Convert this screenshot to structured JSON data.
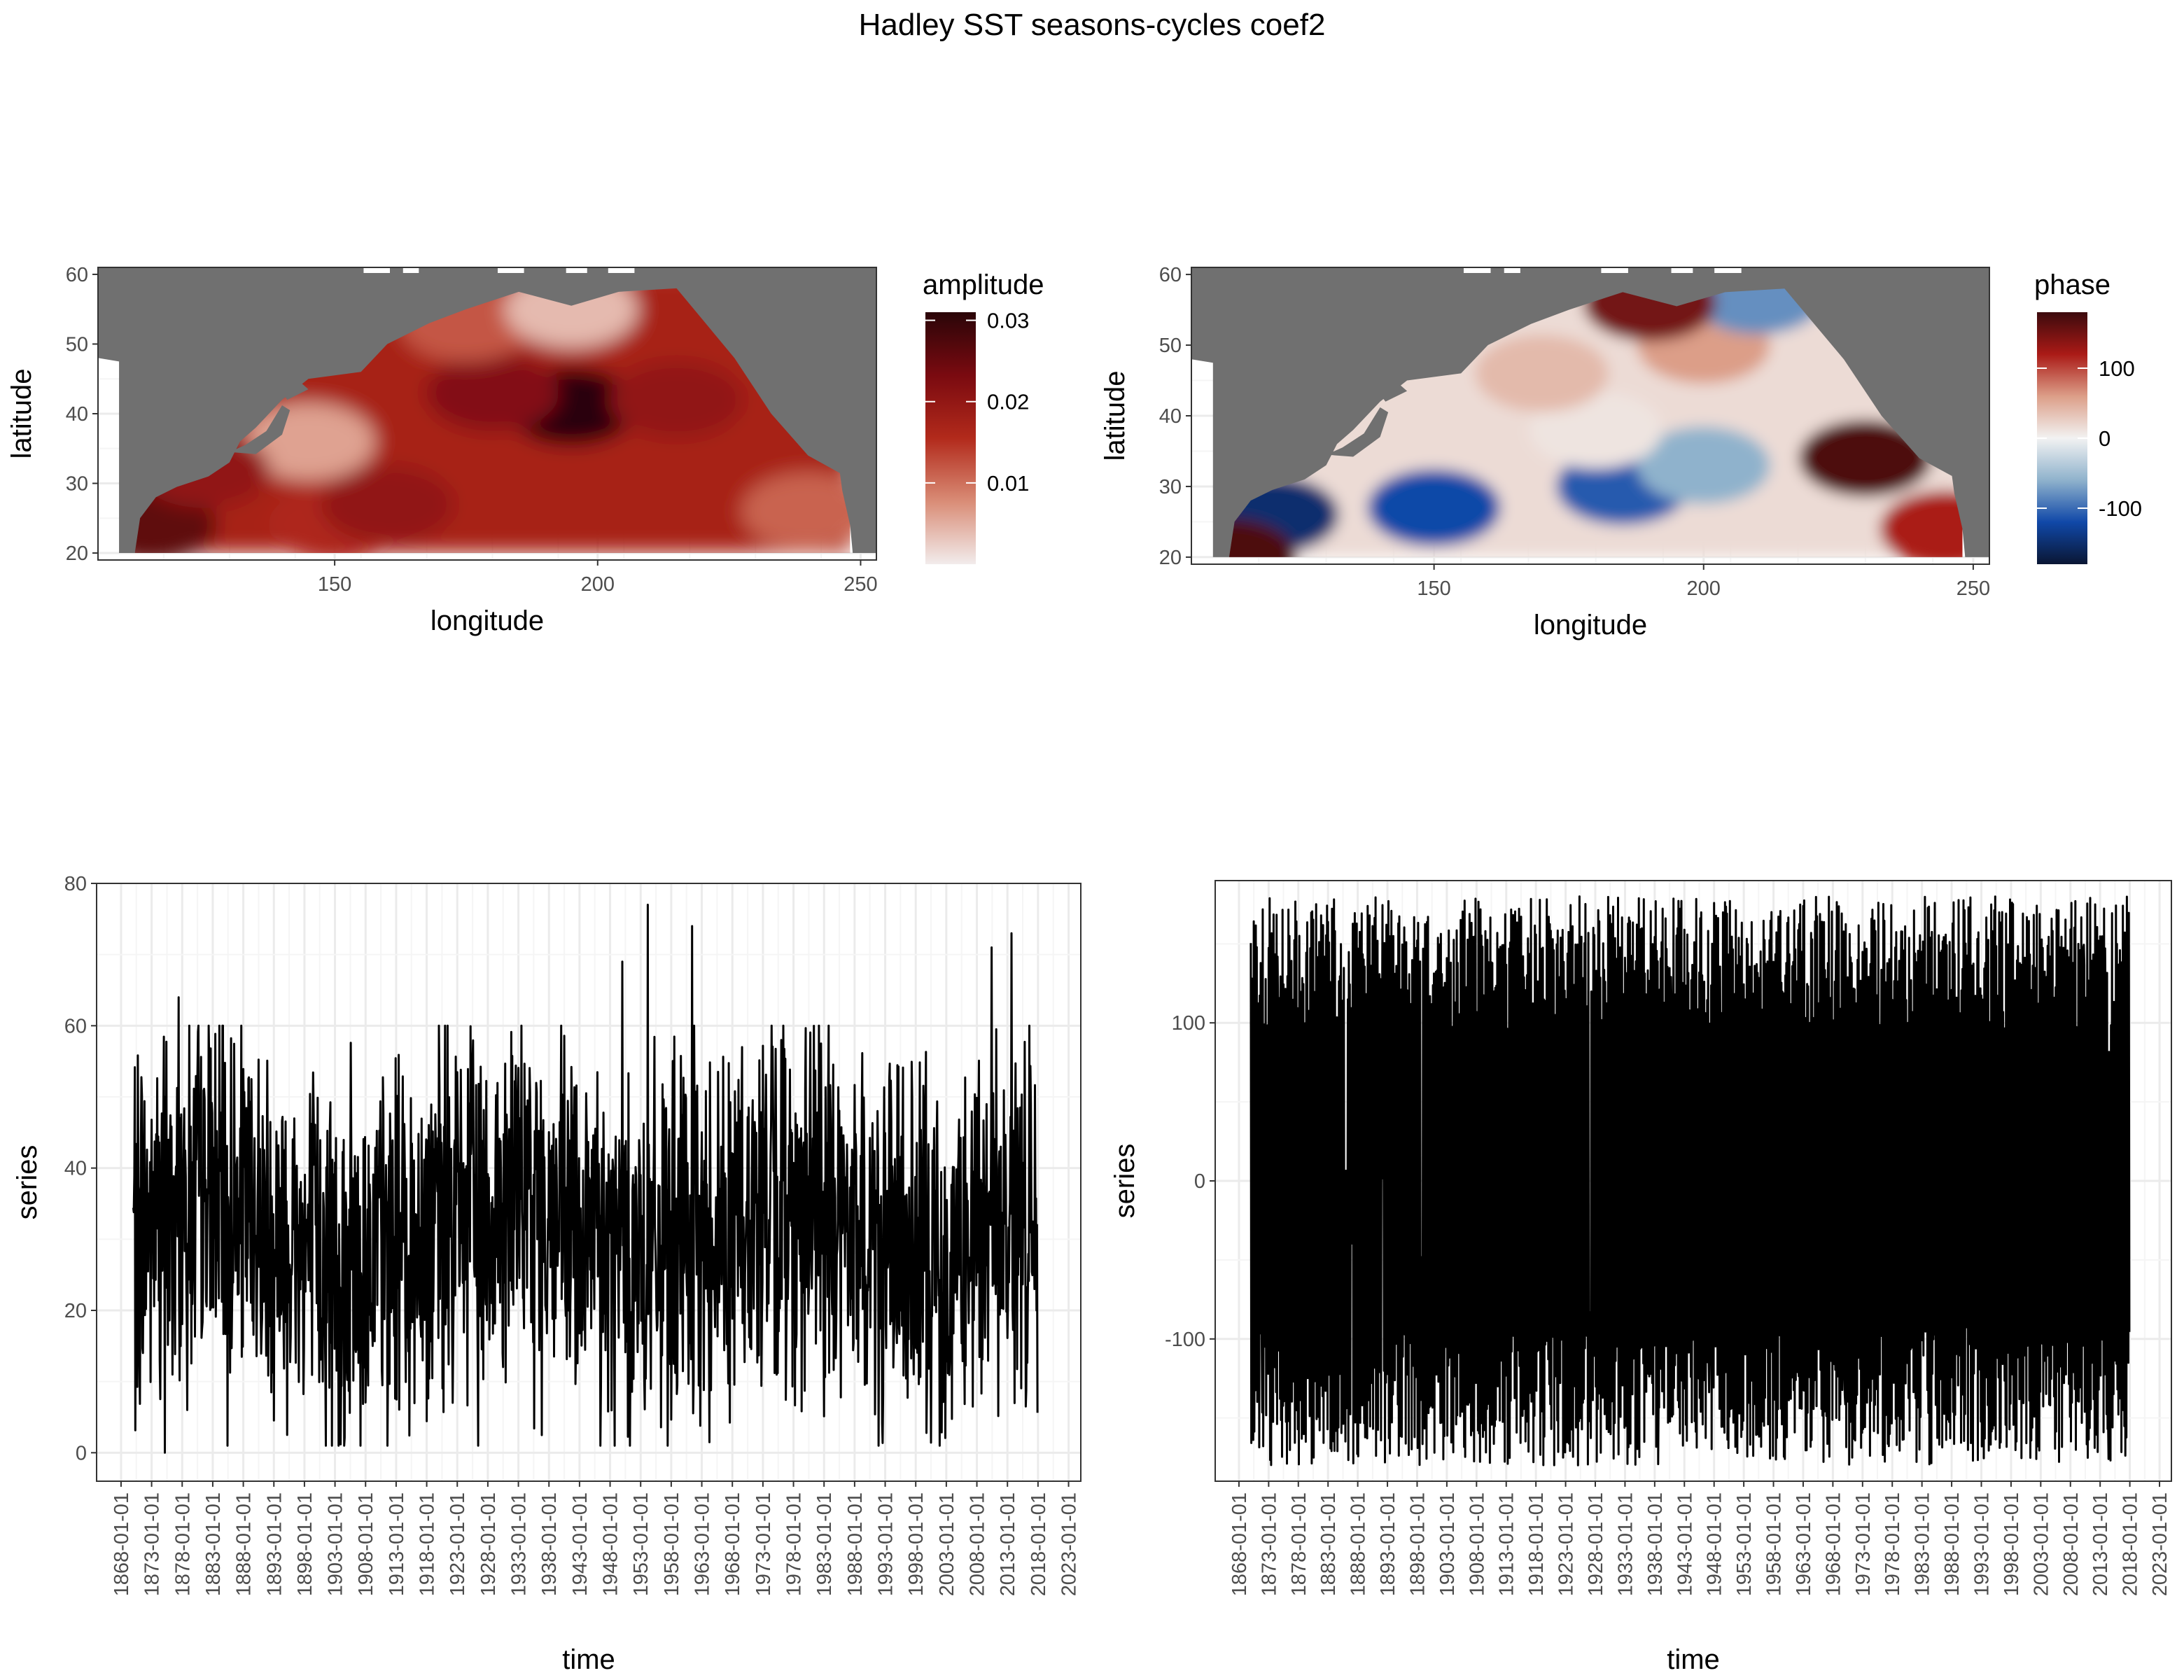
{
  "title": "Hadley SST seasons-cycles coef2",
  "colors": {
    "land": "#707070",
    "grid_major": "#ebebeb",
    "grid_minor": "#f5f5f5",
    "panel_border": "#333333",
    "line": "#000000",
    "amplitude_scale": [
      "#f2ecec",
      "#d98c76",
      "#b22a1b",
      "#7a0a10",
      "#2a0508"
    ],
    "phase_scale": [
      "#0a1633",
      "#1048a8",
      "#8fb2cc",
      "#f2f2f2",
      "#dc9e88",
      "#aa1a16",
      "#3c0a0d"
    ]
  },
  "chart_data": [
    {
      "id": "amplitude-map",
      "type": "heatmap",
      "xlabel": "longitude",
      "ylabel": "latitude",
      "xlim": [
        105,
        253
      ],
      "ylim": [
        19,
        61
      ],
      "xticks": [
        150,
        200,
        250
      ],
      "yticks": [
        20,
        30,
        40,
        50,
        60
      ],
      "grid": true,
      "legend": {
        "title": "amplitude",
        "placement": "right",
        "range": [
          0,
          0.031
        ],
        "ticks": [
          {
            "value": 0.01,
            "label": "0.01"
          },
          {
            "value": 0.02,
            "label": "0.02"
          },
          {
            "value": 0.03,
            "label": "0.03"
          }
        ]
      },
      "field_description_points": [
        {
          "lon": 195,
          "lat": 41,
          "value": 0.031
        },
        {
          "lon": 180,
          "lat": 43,
          "value": 0.022
        },
        {
          "lon": 215,
          "lat": 42,
          "value": 0.02
        },
        {
          "lon": 115,
          "lat": 24,
          "value": 0.026
        },
        {
          "lon": 150,
          "lat": 24,
          "value": 0.016
        },
        {
          "lon": 160,
          "lat": 27,
          "value": 0.02
        },
        {
          "lon": 240,
          "lat": 26,
          "value": 0.011
        },
        {
          "lon": 175,
          "lat": 53,
          "value": 0.012
        },
        {
          "lon": 195,
          "lat": 55,
          "value": 0.004
        },
        {
          "lon": 145,
          "lat": 36,
          "value": 0.006
        },
        {
          "lon": 125,
          "lat": 32,
          "value": 0.02
        }
      ]
    },
    {
      "id": "phase-map",
      "type": "heatmap",
      "xlabel": "longitude",
      "ylabel": "latitude",
      "xlim": [
        105,
        253
      ],
      "ylim": [
        19,
        61
      ],
      "xticks": [
        150,
        200,
        250
      ],
      "yticks": [
        20,
        30,
        40,
        50,
        60
      ],
      "grid": true,
      "legend": {
        "title": "phase",
        "placement": "right",
        "range": [
          -180,
          180
        ],
        "ticks": [
          {
            "value": 100,
            "label": "100"
          },
          {
            "value": 0,
            "label": "0"
          },
          {
            "value": -100,
            "label": "-100"
          }
        ]
      },
      "field_description_points": [
        {
          "lon": 120,
          "lat": 26,
          "value": -150
        },
        {
          "lon": 150,
          "lat": 27,
          "value": -120
        },
        {
          "lon": 185,
          "lat": 30,
          "value": -110
        },
        {
          "lon": 200,
          "lat": 33,
          "value": -60
        },
        {
          "lon": 180,
          "lat": 38,
          "value": 10
        },
        {
          "lon": 170,
          "lat": 46,
          "value": 40
        },
        {
          "lon": 200,
          "lat": 50,
          "value": 60
        },
        {
          "lon": 230,
          "lat": 34,
          "value": 170
        },
        {
          "lon": 245,
          "lat": 24,
          "value": 120
        },
        {
          "lon": 210,
          "lat": 57,
          "value": -80
        },
        {
          "lon": 190,
          "lat": 56,
          "value": 150
        },
        {
          "lon": 112,
          "lat": 20,
          "value": 170
        }
      ]
    },
    {
      "id": "amplitude-series",
      "type": "line",
      "xlabel": "time",
      "ylabel": "series",
      "xlim": [
        "1864-01-01",
        "2025-01-01"
      ],
      "ylim": [
        -4,
        80
      ],
      "yticks": [
        0,
        20,
        40,
        60,
        80
      ],
      "xticks": [
        "1868-01-01",
        "1873-01-01",
        "1878-01-01",
        "1883-01-01",
        "1888-01-01",
        "1893-01-01",
        "1898-01-01",
        "1903-01-01",
        "1908-01-01",
        "1913-01-01",
        "1918-01-01",
        "1923-01-01",
        "1928-01-01",
        "1933-01-01",
        "1938-01-01",
        "1943-01-01",
        "1948-01-01",
        "1953-01-01",
        "1958-01-01",
        "1963-01-01",
        "1968-01-01",
        "1973-01-01",
        "1978-01-01",
        "1983-01-01",
        "1988-01-01",
        "1993-01-01",
        "1998-01-01",
        "2003-01-01",
        "2008-01-01",
        "2013-01-01",
        "2018-01-01",
        "2023-01-01"
      ],
      "grid": true,
      "x_start": "1870-01-01",
      "x_end": "2017-12-01",
      "series_summary": {
        "min": 0,
        "max": 77,
        "typical_low": 10,
        "typical_high": 55,
        "peaks": [
          {
            "x": "1877-06-01",
            "y": 64
          },
          {
            "x": "1954-03-01",
            "y": 77
          },
          {
            "x": "1961-06-01",
            "y": 74
          },
          {
            "x": "2013-09-01",
            "y": 73
          },
          {
            "x": "2010-06-01",
            "y": 71
          },
          {
            "x": "1950-01-01",
            "y": 69
          }
        ],
        "troughs": [
          {
            "x": "1875-03-01",
            "y": 0
          },
          {
            "x": "1885-06-01",
            "y": 1
          },
          {
            "x": "1946-06-01",
            "y": 1
          },
          {
            "x": "1926-06-01",
            "y": 1
          }
        ]
      }
    },
    {
      "id": "phase-series",
      "type": "line",
      "xlabel": "time",
      "ylabel": "series",
      "xlim": [
        "1864-01-01",
        "2025-01-01"
      ],
      "ylim": [
        -190,
        190
      ],
      "yticks": [
        -100,
        0,
        100
      ],
      "xticks": [
        "1868-01-01",
        "1873-01-01",
        "1878-01-01",
        "1883-01-01",
        "1888-01-01",
        "1893-01-01",
        "1898-01-01",
        "1903-01-01",
        "1908-01-01",
        "1913-01-01",
        "1918-01-01",
        "1923-01-01",
        "1928-01-01",
        "1933-01-01",
        "1938-01-01",
        "1943-01-01",
        "1948-01-01",
        "1953-01-01",
        "1958-01-01",
        "1963-01-01",
        "1968-01-01",
        "1973-01-01",
        "1978-01-01",
        "1983-01-01",
        "1988-01-01",
        "1993-01-01",
        "1998-01-01",
        "2003-01-01",
        "2008-01-01",
        "2013-01-01",
        "2018-01-01",
        "2023-01-01"
      ],
      "grid": true,
      "x_start": "1870-01-01",
      "x_end": "2017-12-01",
      "series_summary": {
        "min": -180,
        "max": 180,
        "typical_low": -175,
        "typical_high": 175
      }
    }
  ]
}
